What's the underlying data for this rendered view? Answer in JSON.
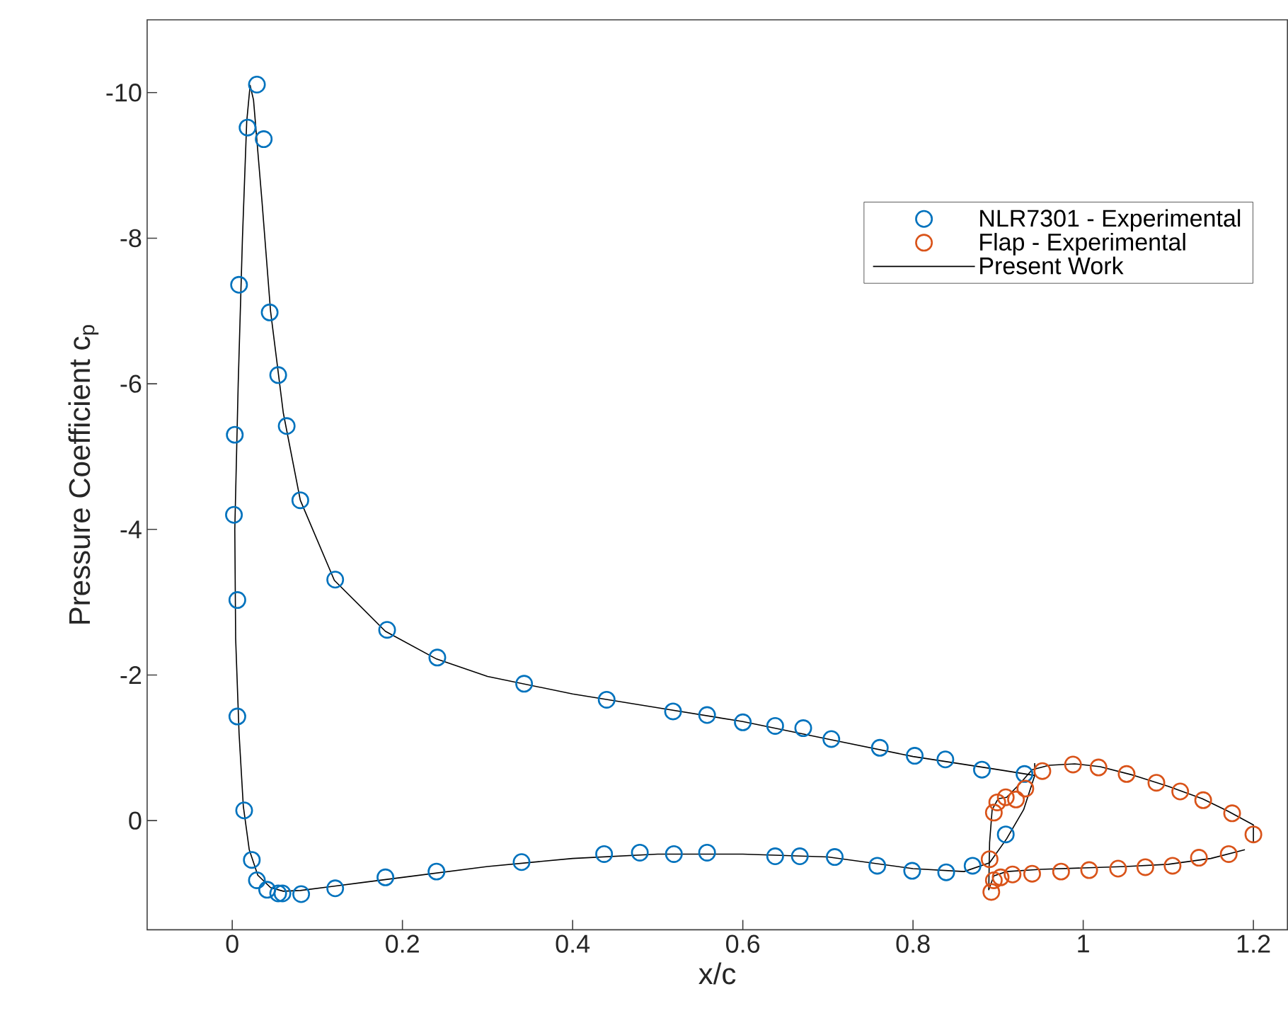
{
  "chart_data": {
    "type": "scatter",
    "xlabel": "x/c",
    "ylabel": "Pressure Coefficient c$_{p}$",
    "xlim": [
      -0.1,
      1.24
    ],
    "ylim": [
      1.5,
      -11
    ],
    "xticks": [
      0,
      0.2,
      0.4,
      0.6,
      0.8,
      1,
      1.2
    ],
    "yticks": [
      -10,
      -8,
      -6,
      -4,
      -2,
      0
    ],
    "grid": false,
    "legend": "top right",
    "series": [
      {
        "name": "NLR7301 - Experimental",
        "type": "scatter",
        "marker": "circle",
        "color": "#0072bd",
        "x": [
          0.029,
          0.018,
          0.037,
          0.008,
          0.044,
          0.054,
          0.064,
          0.003,
          0.002,
          0.08,
          0.006,
          0.121,
          0.182,
          0.241,
          0.006,
          0.014,
          0.023,
          0.029,
          0.041,
          0.054,
          0.059,
          0.081,
          0.121,
          0.18,
          0.24,
          0.343,
          0.44,
          0.518,
          0.558,
          0.6,
          0.638,
          0.671,
          0.704,
          0.761,
          0.802,
          0.838,
          0.881,
          0.931,
          0.34,
          0.437,
          0.479,
          0.519,
          0.558,
          0.638,
          0.667,
          0.708,
          0.758,
          0.799,
          0.839,
          0.87,
          0.909
        ],
        "values": [
          -10.11,
          -9.52,
          -9.36,
          -7.36,
          -6.98,
          -6.12,
          -5.42,
          -5.3,
          -4.2,
          -4.4,
          -3.03,
          -3.31,
          -2.62,
          -2.24,
          -1.43,
          -0.14,
          0.54,
          0.82,
          0.95,
          1.0,
          1.0,
          1.01,
          0.93,
          0.78,
          0.7,
          -1.88,
          -1.66,
          -1.5,
          -1.45,
          -1.35,
          -1.3,
          -1.27,
          -1.12,
          -1.0,
          -0.89,
          -0.84,
          -0.7,
          -0.64,
          0.57,
          0.46,
          0.44,
          0.46,
          0.44,
          0.49,
          0.49,
          0.5,
          0.62,
          0.69,
          0.71,
          0.62,
          0.19
        ]
      },
      {
        "name": "Flap - Experimental",
        "type": "scatter",
        "marker": "circle",
        "color": "#d95319",
        "x": [
          0.952,
          0.988,
          1.018,
          1.051,
          1.086,
          1.114,
          1.141,
          1.175,
          1.2,
          1.171,
          1.136,
          1.105,
          1.073,
          1.041,
          1.007,
          0.974,
          0.94,
          0.917,
          0.903,
          0.892,
          0.895,
          0.89,
          0.895,
          0.899,
          0.909,
          0.921,
          0.932
        ],
        "values": [
          -0.68,
          -0.77,
          -0.73,
          -0.64,
          -0.52,
          -0.4,
          -0.28,
          -0.1,
          0.19,
          0.46,
          0.51,
          0.62,
          0.64,
          0.66,
          0.68,
          0.7,
          0.73,
          0.74,
          0.78,
          0.98,
          0.82,
          0.53,
          -0.11,
          -0.25,
          -0.32,
          -0.29,
          -0.44
        ]
      },
      {
        "name": "Present Work",
        "type": "line",
        "marker": "none",
        "line_style": "solid",
        "color": "#000000",
        "x": [
          0.943,
          0.9,
          0.8,
          0.7,
          0.6,
          0.5,
          0.4,
          0.3,
          0.24,
          0.18,
          0.12,
          0.08,
          0.06,
          0.045,
          0.035,
          0.025,
          0.021,
          0.017,
          0.012,
          0.007,
          0.003,
          0.004,
          0.008,
          0.013,
          0.02,
          0.03,
          0.045,
          0.06,
          0.08,
          0.12,
          0.2,
          0.3,
          0.4,
          0.5,
          0.6,
          0.7,
          0.8,
          0.86,
          0.89,
          0.91,
          0.93,
          0.943,
          0.943
        ],
        "values": [
          -0.62,
          -0.7,
          -0.88,
          -1.12,
          -1.36,
          -1.55,
          -1.74,
          -1.98,
          -2.22,
          -2.6,
          -3.3,
          -4.4,
          -5.6,
          -7.0,
          -8.5,
          -9.9,
          -10.1,
          -9.6,
          -8.0,
          -6.0,
          -4.0,
          -2.5,
          -1.2,
          -0.2,
          0.4,
          0.75,
          0.92,
          0.97,
          0.96,
          0.9,
          0.78,
          0.63,
          0.52,
          0.46,
          0.46,
          0.5,
          0.66,
          0.7,
          0.58,
          0.25,
          -0.15,
          -0.62,
          -0.79
        ]
      },
      {
        "type": "line",
        "marker": "none",
        "line_style": "solid",
        "color": "#000000",
        "x": [
          1.2,
          1.2,
          1.17,
          1.14,
          1.1,
          1.06,
          1.02,
          0.99,
          0.96,
          0.94,
          0.925,
          0.91,
          0.9,
          0.893,
          0.89,
          0.889,
          0.895,
          0.91,
          0.95,
          1.0,
          1.05,
          1.1,
          1.15,
          1.19
        ],
        "values": [
          0.3,
          0.06,
          -0.13,
          -0.3,
          -0.47,
          -0.62,
          -0.74,
          -0.78,
          -0.76,
          -0.7,
          -0.5,
          -0.32,
          -0.3,
          -0.15,
          0.3,
          0.95,
          0.76,
          0.7,
          0.67,
          0.65,
          0.63,
          0.6,
          0.52,
          0.4
        ]
      }
    ]
  }
}
